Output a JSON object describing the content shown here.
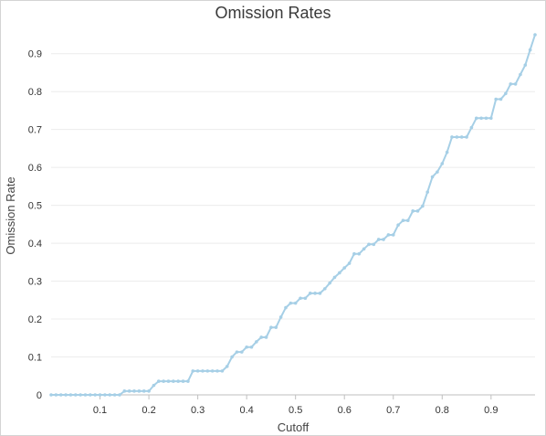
{
  "chart_data": {
    "type": "line",
    "title": "Omission Rates",
    "xlabel": "Cutoff",
    "ylabel": "Omission Rate",
    "xlim": [
      0.0,
      0.99
    ],
    "ylim": [
      0,
      0.95
    ],
    "xticks": [
      "0.1",
      "0.2",
      "0.3",
      "0.4",
      "0.5",
      "0.6",
      "0.7",
      "0.8",
      "0.9"
    ],
    "yticks": [
      "0",
      "0.1",
      "0.2",
      "0.3",
      "0.4",
      "0.5",
      "0.6",
      "0.7",
      "0.8",
      "0.9"
    ],
    "grid": "horizontal",
    "legend": "none",
    "line_color": "#a6cfe6",
    "x": [
      0.0,
      0.01,
      0.02,
      0.03,
      0.04,
      0.05,
      0.06,
      0.07,
      0.08,
      0.09,
      0.1,
      0.11,
      0.12,
      0.13,
      0.14,
      0.15,
      0.16,
      0.17,
      0.18,
      0.19,
      0.2,
      0.21,
      0.22,
      0.23,
      0.24,
      0.25,
      0.26,
      0.27,
      0.28,
      0.29,
      0.3,
      0.31,
      0.32,
      0.33,
      0.34,
      0.35,
      0.36,
      0.37,
      0.38,
      0.39,
      0.4,
      0.41,
      0.42,
      0.43,
      0.44,
      0.45,
      0.46,
      0.47,
      0.48,
      0.49,
      0.5,
      0.51,
      0.52,
      0.53,
      0.54,
      0.55,
      0.56,
      0.57,
      0.58,
      0.59,
      0.6,
      0.61,
      0.62,
      0.63,
      0.64,
      0.65,
      0.66,
      0.67,
      0.68,
      0.69,
      0.7,
      0.71,
      0.72,
      0.73,
      0.74,
      0.75,
      0.76,
      0.77,
      0.78,
      0.79,
      0.8,
      0.81,
      0.82,
      0.83,
      0.84,
      0.85,
      0.86,
      0.87,
      0.88,
      0.89,
      0.9,
      0.91,
      0.92,
      0.93,
      0.94,
      0.95,
      0.96,
      0.97,
      0.98,
      0.99
    ],
    "values": [
      0,
      0,
      0,
      0,
      0,
      0,
      0,
      0,
      0,
      0,
      0,
      0,
      0,
      0,
      0,
      0.01,
      0.01,
      0.01,
      0.01,
      0.01,
      0.01,
      0.025,
      0.036,
      0.036,
      0.036,
      0.036,
      0.036,
      0.036,
      0.036,
      0.063,
      0.063,
      0.063,
      0.063,
      0.063,
      0.063,
      0.063,
      0.075,
      0.1,
      0.113,
      0.113,
      0.126,
      0.126,
      0.14,
      0.152,
      0.152,
      0.178,
      0.178,
      0.205,
      0.23,
      0.242,
      0.242,
      0.255,
      0.255,
      0.268,
      0.268,
      0.268,
      0.28,
      0.295,
      0.31,
      0.322,
      0.335,
      0.347,
      0.372,
      0.372,
      0.385,
      0.397,
      0.397,
      0.41,
      0.41,
      0.422,
      0.422,
      0.448,
      0.46,
      0.46,
      0.485,
      0.485,
      0.498,
      0.535,
      0.575,
      0.588,
      0.61,
      0.64,
      0.68,
      0.68,
      0.68,
      0.68,
      0.705,
      0.73,
      0.73,
      0.73,
      0.73,
      0.78,
      0.78,
      0.795,
      0.82,
      0.82,
      0.845,
      0.87,
      0.91,
      0.95
    ]
  }
}
